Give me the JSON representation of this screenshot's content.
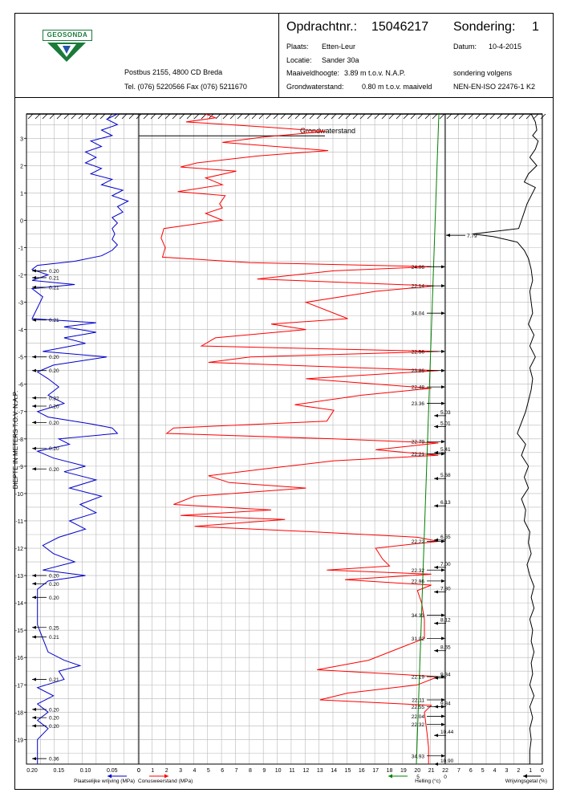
{
  "header": {
    "logo_text": "GEOSONDA",
    "postbus": "Postbus 2155, 4800 CD Breda",
    "tel": "Tel. (076) 5220566 Fax (076) 5211670",
    "opdracht_label": "Opdrachtnr.:",
    "opdracht_value": "15046217",
    "sondering_label": "Sondering:",
    "sondering_value": "1",
    "plaats_label": "Plaats:",
    "plaats_value": "Etten-Leur",
    "datum_label": "Datum:",
    "datum_value": "10-4-2015",
    "locatie_label": "Locatie:",
    "locatie_value": "Sander 30a",
    "maaiveld_label": "Maaiveldhoogte:",
    "maaiveld_value": "3.89  m t.o.v.  N.A.P.",
    "volgens": "sondering volgens",
    "grondwater_label": "Grondwaterstand:",
    "grondwater_value": "0.80  m t.o.v. maaiveld",
    "norm": "NEN-EN-ISO 22476-1 K2"
  },
  "chart_data": {
    "type": "line",
    "y_axis": {
      "label": "DIEPTE IN METERS T.O.V.  N.A.P.",
      "range": [
        3.89,
        -19.9
      ],
      "ticks": [
        3,
        2,
        1,
        0,
        -1,
        -2,
        -3,
        -4,
        -5,
        -6,
        -7,
        -8,
        -9,
        -10,
        -11,
        -12,
        -13,
        -14,
        -15,
        -16,
        -17,
        -18,
        -19
      ]
    },
    "groundwater_label": "Grondwaterstand",
    "groundwater_level_nap": 3.09,
    "panels": [
      {
        "name": "plaatselijke_wrijving",
        "axis_label": "Plaatselijke wrijving (MPa)",
        "color": "#0000cc",
        "range": [
          0.2,
          0.0
        ],
        "tick_labels": [
          "0.20",
          "0.15",
          "0.10",
          "0.05",
          "0"
        ]
      },
      {
        "name": "conusweerstand",
        "axis_label": "Conusweerstand (MPa)",
        "color": "#ff0000",
        "range": [
          0,
          22
        ],
        "tick_labels": [
          "0",
          "1",
          "2",
          "3",
          "4",
          "5",
          "6",
          "7",
          "8",
          "9",
          "10",
          "11",
          "12",
          "13",
          "14",
          "15",
          "16",
          "17",
          "18",
          "19",
          "20",
          "21",
          "22"
        ]
      },
      {
        "name": "helling",
        "axis_label": "Helling (°c)",
        "color": "#008000",
        "tick_labels": [
          "5",
          "0"
        ]
      },
      {
        "name": "wrijvingsgetal",
        "axis_label": "Wrijvingsgetal (%)",
        "color": "#000000",
        "range": [
          7,
          0
        ],
        "tick_labels": [
          "7",
          "6",
          "5",
          "4",
          "3",
          "2",
          "1",
          "0"
        ]
      }
    ],
    "friction_annotations": [
      {
        "depth": -1.85,
        "value": "0.20"
      },
      {
        "depth": -2.1,
        "value": "0.21"
      },
      {
        "depth": -2.45,
        "value": "0.21"
      },
      {
        "depth": -3.65,
        "value": "0.21"
      },
      {
        "depth": -5.0,
        "value": "0.20"
      },
      {
        "depth": -5.5,
        "value": "0.20"
      },
      {
        "depth": -6.5,
        "value": "0.32"
      },
      {
        "depth": -6.8,
        "value": "0.20"
      },
      {
        "depth": -7.4,
        "value": "0.20"
      },
      {
        "depth": -8.35,
        "value": "0.20"
      },
      {
        "depth": -9.1,
        "value": "0.20"
      },
      {
        "depth": -13.0,
        "value": "0.20"
      },
      {
        "depth": -13.3,
        "value": "0.20"
      },
      {
        "depth": -13.8,
        "value": "0.20"
      },
      {
        "depth": -14.9,
        "value": "0.25"
      },
      {
        "depth": -15.25,
        "value": "0.21"
      },
      {
        "depth": -16.8,
        "value": "0.21"
      },
      {
        "depth": -17.9,
        "value": "0.20"
      },
      {
        "depth": -18.2,
        "value": "0.20"
      },
      {
        "depth": -18.5,
        "value": "0.20"
      },
      {
        "depth": -19.7,
        "value": "0.36"
      }
    ],
    "cone_annotations": [
      {
        "depth": -1.7,
        "value": "24.06"
      },
      {
        "depth": -2.4,
        "value": "22.14"
      },
      {
        "depth": -3.4,
        "value": "34.04"
      },
      {
        "depth": -4.8,
        "value": "22.56"
      },
      {
        "depth": -5.5,
        "value": "23.86"
      },
      {
        "depth": -6.1,
        "value": "22.48"
      },
      {
        "depth": -6.7,
        "value": "23.36"
      },
      {
        "depth": -8.1,
        "value": "22.79"
      },
      {
        "depth": -8.55,
        "value": "22.21"
      },
      {
        "depth": -11.75,
        "value": "22.22"
      },
      {
        "depth": -12.8,
        "value": "22.32"
      },
      {
        "depth": -13.2,
        "value": "22.96"
      },
      {
        "depth": -14.45,
        "value": "34.33"
      },
      {
        "depth": -15.3,
        "value": "31.02"
      },
      {
        "depth": -16.7,
        "value": "22.19"
      },
      {
        "depth": -17.55,
        "value": "22.11"
      },
      {
        "depth": -17.8,
        "value": "22.55"
      },
      {
        "depth": -18.15,
        "value": "22.04"
      },
      {
        "depth": -18.45,
        "value": "22.32"
      },
      {
        "depth": -19.6,
        "value": "34.93"
      }
    ],
    "ratio_annotations": [
      {
        "depth": -0.55,
        "value": "7.79"
      },
      {
        "depth": -7.15,
        "value": "5.03"
      },
      {
        "depth": -7.55,
        "value": "5.01"
      },
      {
        "depth": -8.5,
        "value": "5.41"
      },
      {
        "depth": -9.45,
        "value": "5.68"
      },
      {
        "depth": -10.45,
        "value": "6.13"
      },
      {
        "depth": -11.7,
        "value": "6.55"
      },
      {
        "depth": -12.7,
        "value": "7.00"
      },
      {
        "depth": -13.6,
        "value": "7.80"
      },
      {
        "depth": -14.75,
        "value": "8.12"
      },
      {
        "depth": -15.75,
        "value": "8.65"
      },
      {
        "depth": -16.75,
        "value": "9.34"
      },
      {
        "depth": -17.8,
        "value": "9.84"
      },
      {
        "depth": -18.85,
        "value": "10.44"
      },
      {
        "depth": -19.9,
        "value": "10.90"
      }
    ],
    "cone_profile": [
      [
        3.89,
        4.8
      ],
      [
        3.75,
        5.5
      ],
      [
        3.6,
        3.4
      ],
      [
        3.4,
        9.5
      ],
      [
        3.25,
        13.4
      ],
      [
        3.05,
        9.0
      ],
      [
        2.85,
        6.0
      ],
      [
        2.55,
        13.6
      ],
      [
        2.35,
        8.5
      ],
      [
        2.1,
        4.2
      ],
      [
        1.95,
        3.0
      ],
      [
        1.8,
        7.0
      ],
      [
        1.55,
        4.8
      ],
      [
        1.3,
        6.0
      ],
      [
        1.05,
        2.8
      ],
      [
        0.9,
        6.2
      ],
      [
        0.6,
        5.8
      ],
      [
        0.45,
        6.0
      ],
      [
        0.25,
        4.8
      ],
      [
        0.0,
        6.0
      ],
      [
        -0.3,
        1.8
      ],
      [
        -0.65,
        1.6
      ],
      [
        -1.0,
        1.9
      ],
      [
        -1.35,
        1.7
      ],
      [
        -1.55,
        8.0
      ],
      [
        -1.7,
        21.0
      ],
      [
        -1.85,
        14.0
      ],
      [
        -2.15,
        8.5
      ],
      [
        -2.4,
        21.2
      ],
      [
        -2.6,
        17.0
      ],
      [
        -3.0,
        12.0
      ],
      [
        -3.6,
        15.0
      ],
      [
        -3.8,
        9.5
      ],
      [
        -4.0,
        12.0
      ],
      [
        -4.3,
        5.5
      ],
      [
        -4.6,
        4.5
      ],
      [
        -4.8,
        21.5
      ],
      [
        -5.0,
        8.0
      ],
      [
        -5.2,
        5.0
      ],
      [
        -5.5,
        21.5
      ],
      [
        -5.8,
        12.0
      ],
      [
        -6.15,
        21.0
      ],
      [
        -6.4,
        16.0
      ],
      [
        -6.75,
        11.2
      ],
      [
        -6.95,
        14.0
      ],
      [
        -7.35,
        13.5
      ],
      [
        -7.6,
        2.5
      ],
      [
        -7.8,
        2.0
      ],
      [
        -8.0,
        14.0
      ],
      [
        -8.15,
        21.5
      ],
      [
        -8.4,
        17.0
      ],
      [
        -8.6,
        21.5
      ],
      [
        -8.8,
        14.0
      ],
      [
        -9.1,
        9.0
      ],
      [
        -9.35,
        5.0
      ],
      [
        -9.6,
        6.5
      ],
      [
        -9.8,
        12.0
      ],
      [
        -10.1,
        4.0
      ],
      [
        -10.4,
        2.5
      ],
      [
        -10.6,
        9.5
      ],
      [
        -10.8,
        3.0
      ],
      [
        -10.95,
        10.5
      ],
      [
        -11.2,
        4.0
      ],
      [
        -11.4,
        12.5
      ],
      [
        -11.6,
        20.0
      ],
      [
        -11.75,
        21.5
      ],
      [
        -12.0,
        17.0
      ],
      [
        -12.4,
        17.5
      ],
      [
        -12.65,
        18.0
      ],
      [
        -12.8,
        13.5
      ],
      [
        -12.95,
        21.0
      ],
      [
        -13.15,
        14.8
      ],
      [
        -13.35,
        21.0
      ],
      [
        -13.55,
        20.0
      ],
      [
        -14.0,
        20.3
      ],
      [
        -14.6,
        20.5
      ],
      [
        -15.3,
        20.5
      ],
      [
        -15.7,
        18.5
      ],
      [
        -16.1,
        16.5
      ],
      [
        -16.45,
        12.8
      ],
      [
        -16.7,
        21.5
      ],
      [
        -17.0,
        20.0
      ],
      [
        -17.3,
        15.0
      ],
      [
        -17.55,
        13.0
      ],
      [
        -17.75,
        21.0
      ],
      [
        -18.0,
        20.5
      ],
      [
        -18.4,
        20.6
      ],
      [
        -18.8,
        20.7
      ],
      [
        -19.3,
        20.8
      ],
      [
        -19.9,
        20.8
      ]
    ],
    "friction_profile": [
      [
        3.89,
        0.04
      ],
      [
        3.7,
        0.06
      ],
      [
        3.5,
        0.04
      ],
      [
        3.3,
        0.07
      ],
      [
        3.1,
        0.05
      ],
      [
        2.9,
        0.09
      ],
      [
        2.7,
        0.07
      ],
      [
        2.5,
        0.1
      ],
      [
        2.3,
        0.08
      ],
      [
        2.1,
        0.1
      ],
      [
        1.9,
        0.07
      ],
      [
        1.7,
        0.09
      ],
      [
        1.5,
        0.05
      ],
      [
        1.3,
        0.07
      ],
      [
        1.1,
        0.03
      ],
      [
        0.9,
        0.05
      ],
      [
        0.7,
        0.02
      ],
      [
        0.5,
        0.04
      ],
      [
        0.3,
        0.03
      ],
      [
        0.1,
        0.05
      ],
      [
        -0.1,
        0.04
      ],
      [
        -0.3,
        0.05
      ],
      [
        -0.5,
        0.045
      ],
      [
        -0.7,
        0.05
      ],
      [
        -0.9,
        0.04
      ],
      [
        -1.1,
        0.05
      ],
      [
        -1.3,
        0.07
      ],
      [
        -1.5,
        0.12
      ],
      [
        -1.65,
        0.19
      ],
      [
        -1.8,
        0.2
      ],
      [
        -2.0,
        0.17
      ],
      [
        -2.2,
        0.2
      ],
      [
        -2.35,
        0.12
      ],
      [
        -2.5,
        0.2
      ],
      [
        -2.8,
        0.18
      ],
      [
        -3.2,
        0.19
      ],
      [
        -3.6,
        0.2
      ],
      [
        -3.75,
        0.08
      ],
      [
        -3.9,
        0.14
      ],
      [
        -4.1,
        0.08
      ],
      [
        -4.3,
        0.14
      ],
      [
        -4.5,
        0.1
      ],
      [
        -4.8,
        0.18
      ],
      [
        -5.0,
        0.06
      ],
      [
        -5.3,
        0.16
      ],
      [
        -5.55,
        0.19
      ],
      [
        -5.8,
        0.17
      ],
      [
        -6.1,
        0.15
      ],
      [
        -6.4,
        0.17
      ],
      [
        -6.7,
        0.14
      ],
      [
        -7.0,
        0.19
      ],
      [
        -7.2,
        0.17
      ],
      [
        -7.45,
        0.09
      ],
      [
        -7.6,
        0.05
      ],
      [
        -7.8,
        0.04
      ],
      [
        -8.0,
        0.15
      ],
      [
        -8.2,
        0.13
      ],
      [
        -8.45,
        0.19
      ],
      [
        -8.7,
        0.16
      ],
      [
        -9.0,
        0.1
      ],
      [
        -9.2,
        0.14
      ],
      [
        -9.5,
        0.08
      ],
      [
        -9.8,
        0.13
      ],
      [
        -10.1,
        0.07
      ],
      [
        -10.4,
        0.11
      ],
      [
        -10.7,
        0.08
      ],
      [
        -11.0,
        0.13
      ],
      [
        -11.3,
        0.1
      ],
      [
        -11.6,
        0.15
      ],
      [
        -11.9,
        0.18
      ],
      [
        -12.2,
        0.16
      ],
      [
        -12.5,
        0.12
      ],
      [
        -12.8,
        0.18
      ],
      [
        -13.0,
        0.1
      ],
      [
        -13.2,
        0.17
      ],
      [
        -13.5,
        0.19
      ],
      [
        -13.9,
        0.19
      ],
      [
        -14.3,
        0.19
      ],
      [
        -14.8,
        0.19
      ],
      [
        -15.3,
        0.18
      ],
      [
        -15.8,
        0.17
      ],
      [
        -16.1,
        0.14
      ],
      [
        -16.3,
        0.11
      ],
      [
        -16.5,
        0.15
      ],
      [
        -16.8,
        0.14
      ],
      [
        -17.1,
        0.19
      ],
      [
        -17.4,
        0.16
      ],
      [
        -17.7,
        0.19
      ],
      [
        -18.0,
        0.17
      ],
      [
        -18.3,
        0.19
      ],
      [
        -18.6,
        0.17
      ],
      [
        -19.0,
        0.19
      ],
      [
        -19.5,
        0.19
      ],
      [
        -19.9,
        0.19
      ]
    ],
    "ratio_profile": [
      [
        3.89,
        0.8
      ],
      [
        3.6,
        0.5
      ],
      [
        3.3,
        0.4
      ],
      [
        3.1,
        0.7
      ],
      [
        2.9,
        0.3
      ],
      [
        2.6,
        0.5
      ],
      [
        2.3,
        0.9
      ],
      [
        2.0,
        0.4
      ],
      [
        1.7,
        1.0
      ],
      [
        1.4,
        1.3
      ],
      [
        1.2,
        0.5
      ],
      [
        0.9,
        0.8
      ],
      [
        0.6,
        1.1
      ],
      [
        0.3,
        1.3
      ],
      [
        0.0,
        1.5
      ],
      [
        -0.3,
        1.7
      ],
      [
        -0.5,
        5.0
      ],
      [
        -0.6,
        3.5
      ],
      [
        -0.8,
        1.8
      ],
      [
        -1.1,
        1.3
      ],
      [
        -1.4,
        1.0
      ],
      [
        -1.8,
        0.8
      ],
      [
        -2.2,
        0.7
      ],
      [
        -2.6,
        0.9
      ],
      [
        -3.0,
        0.8
      ],
      [
        -3.4,
        0.7
      ],
      [
        -3.8,
        1.0
      ],
      [
        -4.2,
        0.6
      ],
      [
        -4.6,
        0.9
      ],
      [
        -5.0,
        0.5
      ],
      [
        -5.4,
        0.9
      ],
      [
        -5.8,
        0.7
      ],
      [
        -6.2,
        0.8
      ],
      [
        -6.6,
        1.0
      ],
      [
        -7.0,
        1.2
      ],
      [
        -7.4,
        1.5
      ],
      [
        -7.8,
        1.8
      ],
      [
        -8.2,
        1.2
      ],
      [
        -8.6,
        1.5
      ],
      [
        -9.0,
        1.0
      ],
      [
        -9.4,
        1.3
      ],
      [
        -9.8,
        1.0
      ],
      [
        -10.2,
        1.5
      ],
      [
        -10.6,
        1.2
      ],
      [
        -11.0,
        1.3
      ],
      [
        -11.4,
        0.9
      ],
      [
        -11.8,
        1.0
      ],
      [
        -12.2,
        0.8
      ],
      [
        -12.6,
        1.1
      ],
      [
        -13.0,
        0.9
      ],
      [
        -13.4,
        0.6
      ],
      [
        -13.8,
        0.8
      ],
      [
        -14.2,
        0.6
      ],
      [
        -14.6,
        0.9
      ],
      [
        -15.0,
        0.7
      ],
      [
        -15.4,
        0.8
      ],
      [
        -15.8,
        0.6
      ],
      [
        -16.2,
        0.8
      ],
      [
        -16.6,
        0.7
      ],
      [
        -17.0,
        0.9
      ],
      [
        -17.4,
        0.6
      ],
      [
        -17.8,
        0.9
      ],
      [
        -18.2,
        0.7
      ],
      [
        -18.6,
        0.9
      ],
      [
        -19.0,
        0.8
      ],
      [
        -19.4,
        0.9
      ],
      [
        -19.9,
        0.9
      ]
    ]
  }
}
